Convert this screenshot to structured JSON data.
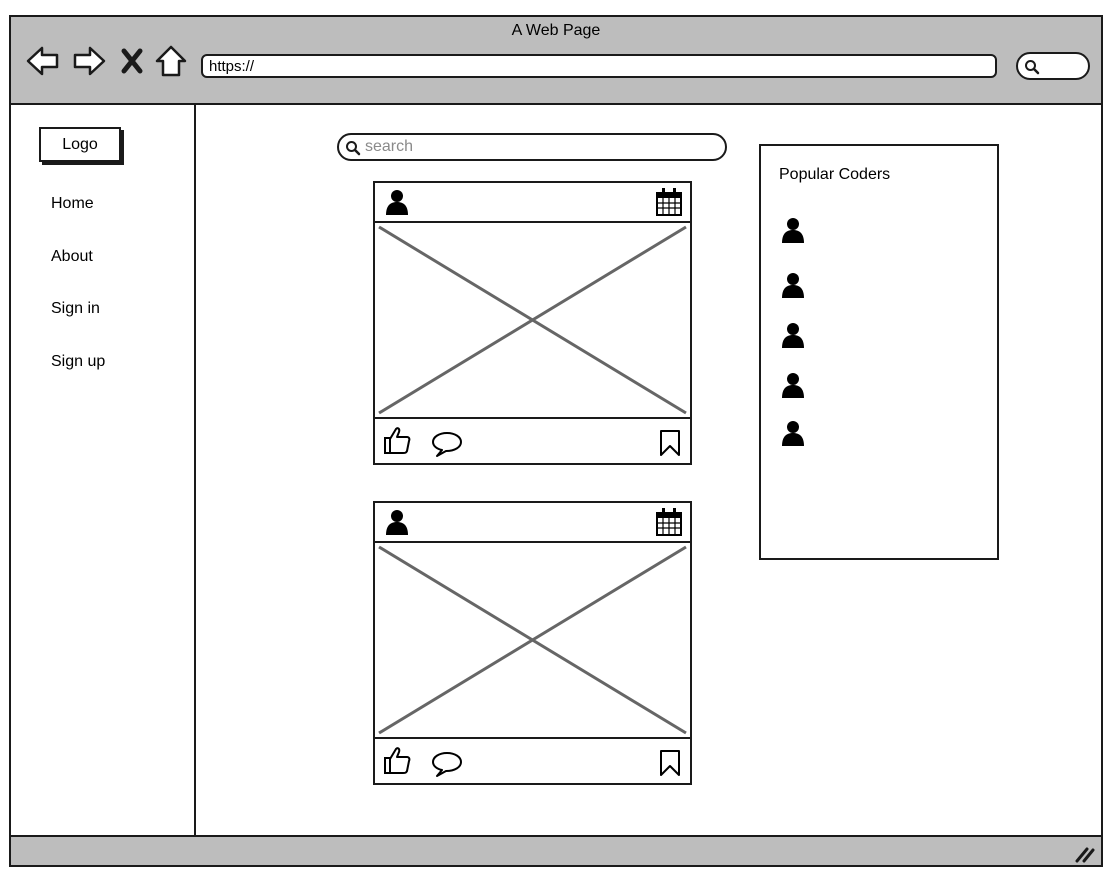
{
  "window": {
    "title": "A Web Page"
  },
  "address_bar": {
    "url": "https://"
  },
  "browser_buttons": [
    "back-icon",
    "forward-icon",
    "close-icon",
    "home-icon"
  ],
  "browser_search": {
    "icon": "search-icon"
  },
  "sidebar": {
    "logo_label": "Logo",
    "items": [
      {
        "label": "Home"
      },
      {
        "label": "About"
      },
      {
        "label": "Sign in"
      },
      {
        "label": "Sign up"
      }
    ]
  },
  "main": {
    "search": {
      "placeholder": "search",
      "icon": "search-icon"
    },
    "posts": [
      {
        "header_icons": [
          "user-icon",
          "calendar-icon"
        ],
        "image": "image-placeholder",
        "action_icons": [
          "like-icon",
          "comment-icon",
          "bookmark-icon"
        ]
      },
      {
        "header_icons": [
          "user-icon",
          "calendar-icon"
        ],
        "image": "image-placeholder",
        "action_icons": [
          "like-icon",
          "comment-icon",
          "bookmark-icon"
        ]
      }
    ]
  },
  "popular": {
    "title": "Popular Coders",
    "coders": [
      "user-icon",
      "user-icon",
      "user-icon",
      "user-icon",
      "user-icon"
    ]
  },
  "colors": {
    "chrome": "#bdbdbd",
    "stroke": "#1a1a1a",
    "placeholder_lines": "#666666"
  }
}
